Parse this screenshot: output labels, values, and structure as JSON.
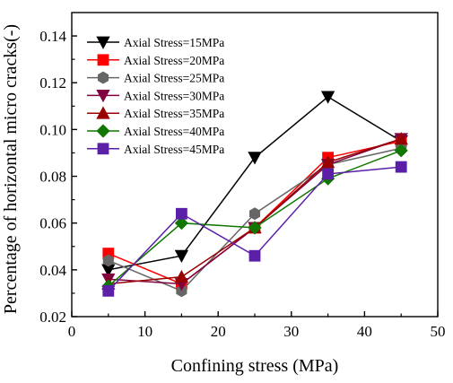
{
  "chart_data": {
    "type": "line",
    "xlabel": "Confining stress (MPa)",
    "ylabel": "Percentage of horizontal micro cracks(-)",
    "xlim": [
      0,
      50
    ],
    "ylim": [
      0.02,
      0.15
    ],
    "xticks": [
      0,
      10,
      20,
      30,
      40,
      50
    ],
    "yticks": [
      0.02,
      0.04,
      0.06,
      0.08,
      0.1,
      0.12,
      0.14
    ],
    "ytick_labels": [
      "0.02",
      "0.04",
      "0.06",
      "0.08",
      "0.10",
      "0.12",
      "0.14"
    ],
    "grid": false,
    "legend_position": "top-left",
    "x": [
      5,
      15,
      25,
      35,
      45
    ],
    "series": [
      {
        "name": "Axial Stress=15MPa",
        "color": "#000000",
        "marker": "triangle-down",
        "values": [
          0.04,
          0.046,
          0.088,
          0.114,
          0.095
        ]
      },
      {
        "name": "Axial Stress=20MPa",
        "color": "#ff0000",
        "marker": "square",
        "values": [
          0.047,
          0.034,
          0.058,
          0.088,
          0.095
        ]
      },
      {
        "name": "Axial Stress=25MPa",
        "color": "#666666",
        "marker": "hexagon",
        "values": [
          0.044,
          0.031,
          0.064,
          0.085,
          0.092
        ]
      },
      {
        "name": "Axial Stress=30MPa",
        "color": "#800040",
        "marker": "triangle-down",
        "values": [
          0.036,
          0.034,
          0.058,
          0.085,
          0.096
        ]
      },
      {
        "name": "Axial Stress=35MPa",
        "color": "#990000",
        "marker": "triangle-up",
        "values": [
          0.034,
          0.037,
          0.058,
          0.086,
          0.096
        ]
      },
      {
        "name": "Axial Stress=40MPa",
        "color": "#117700",
        "marker": "diamond",
        "values": [
          0.033,
          0.06,
          0.058,
          0.079,
          0.091
        ]
      },
      {
        "name": "Axial Stress=45MPa",
        "color": "#5b1fa8",
        "marker": "square",
        "values": [
          0.031,
          0.064,
          0.046,
          0.081,
          0.084
        ]
      }
    ]
  }
}
